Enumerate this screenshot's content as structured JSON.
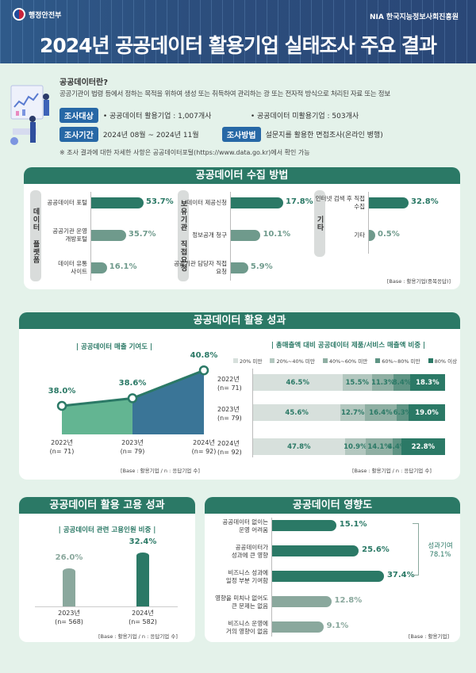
{
  "header": {
    "ministry": "행정안전부",
    "agency": "NIA 한국지능정보사회진흥원",
    "title": "2024년 공공데이터 활용기업 실태조사 주요 결과"
  },
  "intro": {
    "question": "공공데이터란?",
    "definition": "공공기관이 법령 등에서 정하는 목적을 위하여 생성 또는 취득하여 관리하는 광 또는 전자적 방식으로 처리된 자료 또는 정보",
    "target_label": "조사대상",
    "target_1": "• 공공데이터 활용기업 : 1,007개사",
    "target_2": "• 공공데이터 미활용기업 : 503개사",
    "period_label": "조사기간",
    "period": "2024년 08월 ~ 2024년 11월",
    "method_label": "조사방법",
    "method": "설문지를 활용한 면접조사(온라인 병행)",
    "note": "※ 조사  결과에 대한 자세한 사항은 공공데이터포털(https://www.data.go.kr)에서 확인 가능"
  },
  "colors": {
    "dark": "#2b7966",
    "mid": "#6f9a8c",
    "light": "#d7e0dc",
    "lighter": "#b7c9c2",
    "header": "#2c4e7d",
    "tag": "#2768a6"
  },
  "chart_data": [
    {
      "type": "bar",
      "title": "공공데이터 수집 방법",
      "base": "[Base : 활용기업(중복응답)]",
      "groups": [
        {
          "name": "데이터 플랫폼",
          "categories": [
            "공공데이터 포털",
            "공공기관 운영 개방포털",
            "데이터 유통 사이트"
          ],
          "values": [
            53.7,
            35.7,
            16.1
          ]
        },
        {
          "name": "보유기관 직접요청",
          "categories": [
            "데이터 제공신청",
            "정보공개 청구",
            "공공기관 담당자 직접 요청"
          ],
          "values": [
            17.8,
            10.1,
            5.9
          ]
        },
        {
          "name": "기타",
          "categories": [
            "인터넷 검색 후 직접 수집",
            "기타"
          ],
          "values": [
            32.8,
            0.5
          ]
        }
      ]
    },
    {
      "type": "area",
      "section": "공공데이터 활용 성과",
      "title": "| 공공데이터 매출 기여도 |",
      "categories": [
        "2022년\n(n= 71)",
        "2023년\n(n= 79)",
        "2024년\n(n= 92)"
      ],
      "values": [
        38.0,
        38.6,
        40.8
      ],
      "base": "[Base : 활용기업 / n : 응답기업 수]"
    },
    {
      "type": "bar",
      "stacked": true,
      "title": "| 총매출액 대비 공공데이터 제품/서비스 매출액 비중 |",
      "categories": [
        "2022년\n(n= 71)",
        "2023년\n(n= 79)",
        "2024년\n(n= 92)"
      ],
      "series": [
        {
          "name": "20% 미만",
          "values": [
            46.5,
            45.6,
            47.8
          ]
        },
        {
          "name": "20%~40% 미만",
          "values": [
            15.5,
            12.7,
            10.9
          ]
        },
        {
          "name": "40%~60% 미만",
          "values": [
            11.3,
            16.4,
            14.1
          ]
        },
        {
          "name": "60%~80% 미만",
          "values": [
            8.4,
            6.3,
            4.4
          ]
        },
        {
          "name": "80% 이상",
          "values": [
            18.3,
            19.0,
            22.8
          ]
        }
      ],
      "legend": "top",
      "base": "[Base : 활용기업 / n : 응답기업 수]"
    },
    {
      "type": "bar",
      "section": "공공데이터 활용 고용 성과",
      "title": "| 공공데이터 관련 고용인원 비중 |",
      "categories": [
        "2023년\n(n= 568)",
        "2024년\n(n= 582)"
      ],
      "values": [
        26.0,
        32.4
      ],
      "base": "[Base : 활용기업 / n : 응답기업 수]"
    },
    {
      "type": "bar",
      "title": "공공데이터 영향도",
      "categories": [
        "공공데이터 없이는\n운영 어려움",
        "공공데이터가\n성과에 큰 영향",
        "비즈니스 성과에\n일정 부분 기여함",
        "영향을 미치나 없어도\n큰 문제는 없음",
        "비즈니스 운영에\n거의 영향이 없음"
      ],
      "values": [
        15.1,
        25.6,
        37.4,
        12.8,
        9.1
      ],
      "annotation": "성과기여\n78.1%",
      "base": "[Base : 활용기업]"
    }
  ]
}
